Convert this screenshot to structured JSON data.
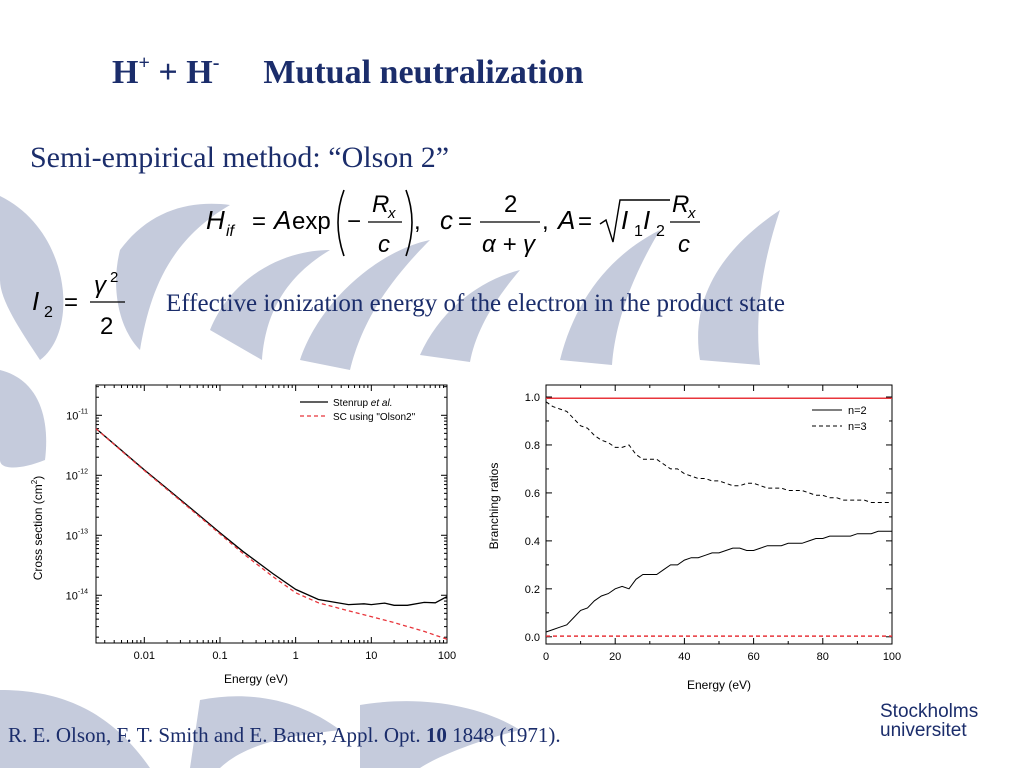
{
  "slide": {
    "title_h1": "H",
    "title_sup1": "+",
    "title_plus": " + H",
    "title_sup2": "-",
    "title_main": "Mutual neutralization",
    "subtitle": "Semi-empirical method: “Olson 2”",
    "description": "Effective ionization energy of the electron in the product state",
    "reference_authors": "R. E. Olson, F. T. Smith and E. Bauer, Appl. Opt. ",
    "reference_volume": "10",
    "reference_rest": " 1848 (1971).",
    "logo_line1": "Stockholms",
    "logo_line2": "universitet",
    "colors": {
      "title": "#1b2d6b",
      "background_arcs": "#c5cbdc",
      "red_series": "#e8353b"
    }
  },
  "formula": {
    "H": "H",
    "if": "if",
    "eq": "=",
    "A": "A",
    "exp": "exp",
    "minus": "−",
    "Rx_R": "R",
    "Rx_x": "x",
    "c": "c",
    "comma": ",",
    "c2": "c",
    "eq2": "=",
    "two": "2",
    "alpha_gamma": "α + γ",
    "comma2": ",",
    "A2": "A",
    "eq3": "=",
    "I1I2": "I",
    "one": "1",
    "I2": "I",
    "twosub": "2",
    "I2lhs": "I",
    "I2sub": "2",
    "eq4": "=",
    "gamma": "γ",
    "sq": "2",
    "den": "2"
  },
  "chart_data": [
    {
      "type": "line",
      "xscale": "log",
      "yscale": "log",
      "xlabel": "Energy (eV)",
      "ylabel": "Cross section (cm²)",
      "xlim": [
        0.0023,
        100
      ],
      "ylim": [
        1.6e-15,
        3.2e-11
      ],
      "xticks": [
        "0.01",
        "0.1",
        "1",
        "10",
        "100"
      ],
      "yticks": [
        {
          "base": "10",
          "exp": "-11",
          "value": 1e-11
        },
        {
          "base": "10",
          "exp": "-12",
          "value": 1e-12
        },
        {
          "base": "10",
          "exp": "-13",
          "value": 1e-13
        },
        {
          "base": "10",
          "exp": "-14",
          "value": 1e-14
        }
      ],
      "legend_position": "top-right",
      "series": [
        {
          "name": "Stenrup",
          "name_italic": "et al.",
          "color": "#000000",
          "dash": "solid",
          "x": [
            0.0023,
            0.005,
            0.01,
            0.02,
            0.05,
            0.1,
            0.2,
            0.5,
            1,
            2,
            5,
            8,
            10,
            15,
            20,
            30,
            50,
            70,
            100
          ],
          "y": [
            6e-12,
            2.6e-12,
            1.23e-12,
            6e-13,
            2.3e-13,
            1.1e-13,
            5.4e-14,
            2.3e-14,
            1.25e-14,
            8.5e-15,
            7e-15,
            7.2e-15,
            7e-15,
            7.4e-15,
            6.8e-15,
            6.8e-15,
            7.6e-15,
            7.5e-15,
            9.5e-15
          ]
        },
        {
          "name": "SC using \"Olson2\"",
          "color": "#e8353b",
          "dash": "dashed",
          "x": [
            0.0023,
            0.005,
            0.01,
            0.02,
            0.05,
            0.1,
            0.2,
            0.5,
            1,
            2,
            5,
            10,
            20,
            50,
            100
          ],
          "y": [
            6e-12,
            2.55e-12,
            1.2e-12,
            5.8e-13,
            2.2e-13,
            1.05e-13,
            5e-14,
            2.05e-14,
            1.1e-14,
            7.5e-15,
            5.5e-15,
            4.4e-15,
            3.5e-15,
            2.5e-15,
            1.85e-15
          ]
        }
      ]
    },
    {
      "type": "line",
      "xlabel": "Energy (eV)",
      "ylabel": "Branching ratios",
      "xlim": [
        0,
        100
      ],
      "ylim": [
        -0.03,
        1.05
      ],
      "xticks": [
        0,
        20,
        40,
        60,
        80,
        100
      ],
      "yticks": [
        "0.0",
        "0.2",
        "0.4",
        "0.6",
        "0.8",
        "1.0"
      ],
      "legend_position": "top-right",
      "series": [
        {
          "name": "n=2",
          "color": "#000000",
          "dash": "solid",
          "x": [
            0,
            2,
            4,
            6,
            8,
            10,
            12,
            14,
            16,
            18,
            20,
            22,
            24,
            26,
            28,
            30,
            32,
            34,
            36,
            38,
            40,
            42,
            44,
            46,
            48,
            50,
            52,
            54,
            56,
            58,
            60,
            62,
            64,
            66,
            68,
            70,
            72,
            74,
            76,
            78,
            80,
            82,
            84,
            86,
            88,
            90,
            92,
            94,
            96,
            98,
            100
          ],
          "y": [
            0.02,
            0.03,
            0.04,
            0.05,
            0.08,
            0.11,
            0.12,
            0.15,
            0.17,
            0.18,
            0.2,
            0.21,
            0.2,
            0.24,
            0.26,
            0.26,
            0.26,
            0.28,
            0.3,
            0.3,
            0.32,
            0.33,
            0.33,
            0.34,
            0.35,
            0.35,
            0.36,
            0.37,
            0.37,
            0.36,
            0.36,
            0.37,
            0.38,
            0.38,
            0.38,
            0.39,
            0.39,
            0.39,
            0.4,
            0.41,
            0.41,
            0.42,
            0.42,
            0.42,
            0.42,
            0.43,
            0.43,
            0.43,
            0.44,
            0.44,
            0.44
          ]
        },
        {
          "name": "n=3",
          "color": "#000000",
          "dash": "dashed",
          "x": [
            0,
            2,
            4,
            6,
            8,
            10,
            12,
            14,
            16,
            18,
            20,
            22,
            24,
            26,
            28,
            30,
            32,
            34,
            36,
            38,
            40,
            42,
            44,
            46,
            48,
            50,
            52,
            54,
            56,
            58,
            60,
            62,
            64,
            66,
            68,
            70,
            72,
            74,
            76,
            78,
            80,
            82,
            84,
            86,
            88,
            90,
            92,
            94,
            96,
            98,
            100
          ],
          "y": [
            0.98,
            0.96,
            0.95,
            0.94,
            0.91,
            0.88,
            0.87,
            0.84,
            0.82,
            0.81,
            0.79,
            0.79,
            0.8,
            0.76,
            0.74,
            0.74,
            0.74,
            0.72,
            0.7,
            0.7,
            0.68,
            0.67,
            0.66,
            0.66,
            0.65,
            0.65,
            0.64,
            0.63,
            0.63,
            0.64,
            0.64,
            0.63,
            0.62,
            0.62,
            0.62,
            0.61,
            0.61,
            0.61,
            0.6,
            0.59,
            0.59,
            0.58,
            0.58,
            0.57,
            0.57,
            0.57,
            0.57,
            0.56,
            0.56,
            0.56,
            0.56
          ]
        },
        {
          "name": "",
          "color": "#e8353b",
          "dash": "solid",
          "x": [
            0,
            100
          ],
          "y": [
            0.995,
            0.995
          ]
        },
        {
          "name": "",
          "color": "#e8353b",
          "dash": "dashed",
          "x": [
            0,
            100
          ],
          "y": [
            0.003,
            0.003
          ]
        }
      ]
    }
  ]
}
